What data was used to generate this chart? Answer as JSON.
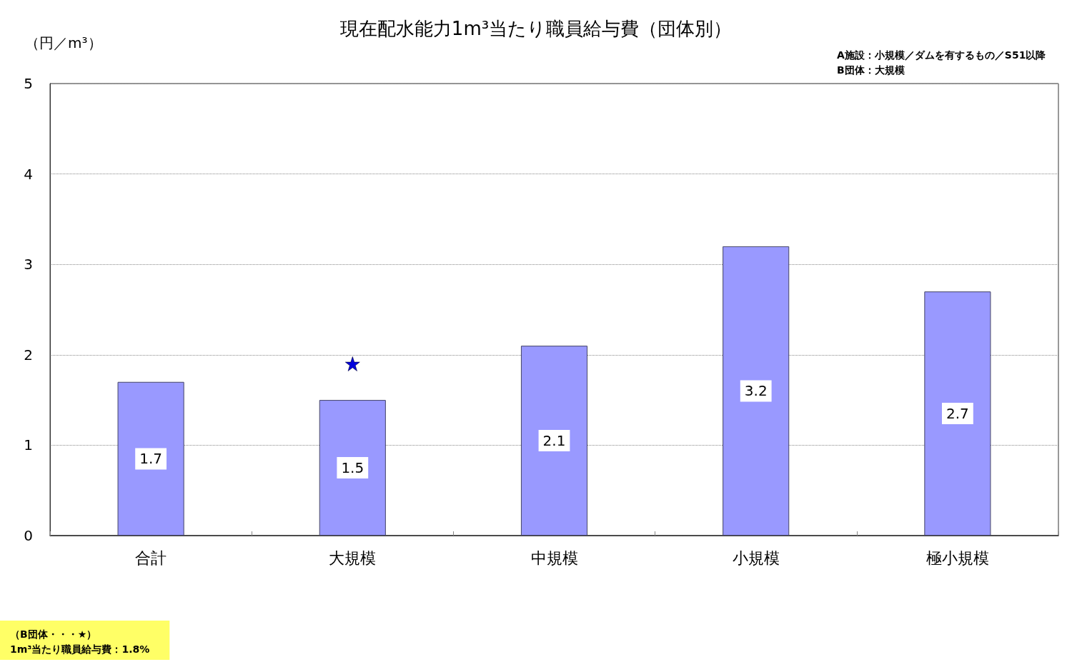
{
  "chart_data": {
    "type": "bar",
    "title": "現在配水能力1m³当たり職員給与費（団体別）",
    "ylabel": "（円／m³）",
    "annotations": [
      "A施設：小規模／ダムを有するもの／S51以降",
      "B団体：大規模",
      "（B団体・・・★）",
      "1m³当たり職員給与費：1.8%"
    ],
    "categories": [
      "合計",
      "大規模",
      "中規模",
      "小規模",
      "極小規模"
    ],
    "series": [
      {
        "values": [
          1.7,
          1.5,
          2.1,
          3.2,
          2.7
        ],
        "color": "#9999ff",
        "value_labels": [
          "1.7",
          "1.5",
          "2.1",
          "3.2",
          "2.7"
        ]
      },
      {
        "type": "scatter",
        "x": [
          "大規模"
        ],
        "values": [
          1.9
        ],
        "color": "#0000dd"
      }
    ],
    "marker": "star",
    "ylim": [
      0,
      5
    ],
    "yticks": [
      0,
      1,
      2,
      3,
      4,
      5
    ],
    "grid": "y"
  }
}
